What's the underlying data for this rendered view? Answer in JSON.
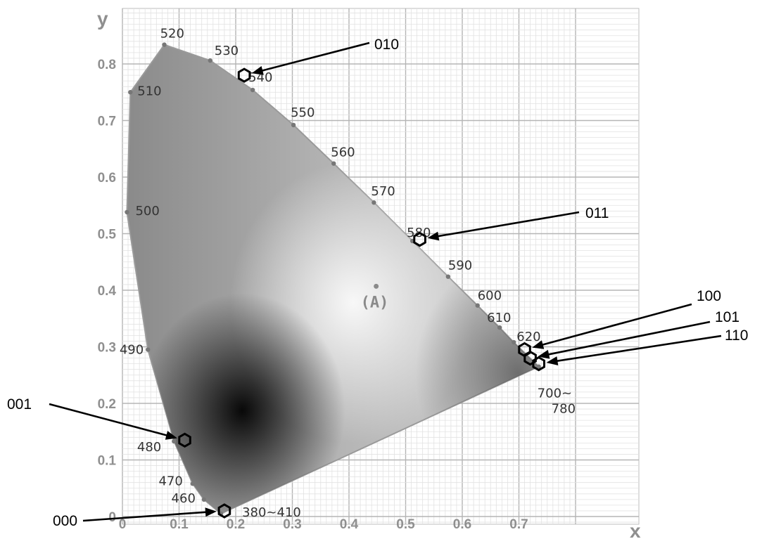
{
  "chart_data": {
    "type": "scatter",
    "title": "",
    "xlabel": "x",
    "ylabel": "y",
    "xlim": [
      0,
      0.8
    ],
    "ylim": [
      0,
      0.85
    ],
    "grid": true,
    "x_ticks": [
      "0",
      "0.1",
      "0.2",
      "0.3",
      "0.4",
      "0.5",
      "0.6",
      "0.7"
    ],
    "y_ticks": [
      "0",
      "0.1",
      "0.2",
      "0.3",
      "0.4",
      "0.5",
      "0.6",
      "0.7",
      "0.8"
    ],
    "spectral_locus": [
      {
        "label": "380~410",
        "x": 0.174,
        "y": 0.005
      },
      {
        "label": "460",
        "x": 0.144,
        "y": 0.03
      },
      {
        "label": "470",
        "x": 0.124,
        "y": 0.058
      },
      {
        "label": "480",
        "x": 0.091,
        "y": 0.133
      },
      {
        "label": "490",
        "x": 0.045,
        "y": 0.295
      },
      {
        "label": "500",
        "x": 0.008,
        "y": 0.538
      },
      {
        "label": "510",
        "x": 0.014,
        "y": 0.75
      },
      {
        "label": "520",
        "x": 0.074,
        "y": 0.834
      },
      {
        "label": "530",
        "x": 0.155,
        "y": 0.806
      },
      {
        "label": "540",
        "x": 0.23,
        "y": 0.754
      },
      {
        "label": "550",
        "x": 0.302,
        "y": 0.692
      },
      {
        "label": "560",
        "x": 0.373,
        "y": 0.624
      },
      {
        "label": "570",
        "x": 0.444,
        "y": 0.555
      },
      {
        "label": "580",
        "x": 0.512,
        "y": 0.487
      },
      {
        "label": "590",
        "x": 0.575,
        "y": 0.424
      },
      {
        "label": "600",
        "x": 0.627,
        "y": 0.373
      },
      {
        "label": "610",
        "x": 0.666,
        "y": 0.334
      },
      {
        "label": "620",
        "x": 0.691,
        "y": 0.308
      },
      {
        "label": "700~780",
        "x": 0.735,
        "y": 0.265
      }
    ],
    "white_point": {
      "label": "(A)",
      "x": 0.448,
      "y": 0.407
    },
    "marked_points": [
      {
        "label": "000",
        "x": 0.18,
        "y": 0.01
      },
      {
        "label": "001",
        "x": 0.11,
        "y": 0.135
      },
      {
        "label": "010",
        "x": 0.215,
        "y": 0.78
      },
      {
        "label": "011",
        "x": 0.525,
        "y": 0.49
      },
      {
        "label": "100",
        "x": 0.71,
        "y": 0.295
      },
      {
        "label": "101",
        "x": 0.72,
        "y": 0.28
      },
      {
        "label": "110",
        "x": 0.735,
        "y": 0.27
      }
    ]
  }
}
